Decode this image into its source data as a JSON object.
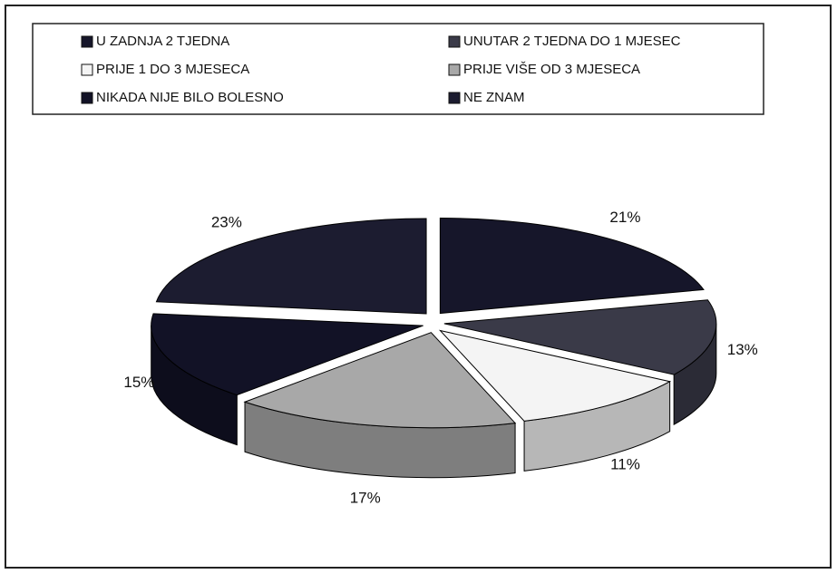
{
  "chart_data": {
    "type": "pie",
    "categories": [
      "U ZADNJA 2 TJEDNA",
      "UNUTAR 2 TJEDNA DO 1 MJESEC",
      "PRIJE 1 DO 3 MJESECA",
      "PRIJE VIŠE OD 3 MJESECA",
      "NIKADA NIJE BILO BOLESNO",
      "NE ZNAM"
    ],
    "values": [
      21,
      13,
      11,
      17,
      15,
      23
    ],
    "value_labels": [
      "21%",
      "13%",
      "11%",
      "17%",
      "15%",
      "23%"
    ],
    "colors": [
      "#16162a",
      "#3a3a48",
      "#f4f4f4",
      "#a8a8a8",
      "#121226",
      "#1c1c30"
    ],
    "legend": "top"
  }
}
